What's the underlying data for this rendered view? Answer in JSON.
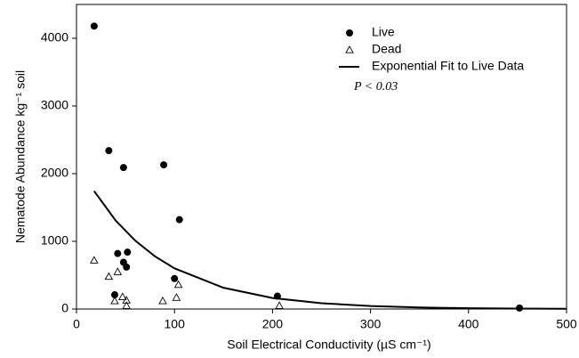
{
  "chart_data": {
    "type": "scatter",
    "xlabel": "Soil Electrical Conductivity (µS cm⁻¹)",
    "ylabel": "Nematode Abundance kg⁻¹ soil",
    "annotation": "P < 0.03",
    "xlim": [
      0,
      500
    ],
    "xticks": [
      0,
      100,
      200,
      300,
      400,
      500
    ],
    "ylim": [
      0,
      4500
    ],
    "yticks": [
      0,
      1000,
      2000,
      3000,
      4000
    ],
    "legend": "upper right",
    "series": [
      {
        "name": "Live",
        "marker": "circle",
        "color": "#000000",
        "x": [
          18,
          33,
          48,
          89,
          105,
          52,
          42,
          48,
          51,
          39,
          100,
          205,
          452
        ],
        "values": [
          4180,
          2340,
          2090,
          2130,
          1320,
          840,
          820,
          690,
          620,
          210,
          450,
          190,
          15
        ]
      },
      {
        "name": "Dead",
        "marker": "triangle",
        "color": "#000000",
        "x": [
          18,
          33,
          42,
          39,
          47,
          51,
          51,
          88,
          102,
          104,
          207
        ],
        "values": [
          720,
          480,
          550,
          120,
          180,
          130,
          50,
          120,
          170,
          360,
          50
        ]
      },
      {
        "name": "Exponential Fit to Live Data",
        "marker": "line",
        "color": "#000000",
        "x": [
          18,
          40,
          60,
          80,
          100,
          150,
          200,
          250,
          300,
          350,
          400,
          450,
          500
        ],
        "values": [
          1743,
          1307,
          1009,
          779,
          601,
          314,
          163,
          85,
          45,
          23,
          12,
          6,
          3.3
        ]
      }
    ]
  }
}
